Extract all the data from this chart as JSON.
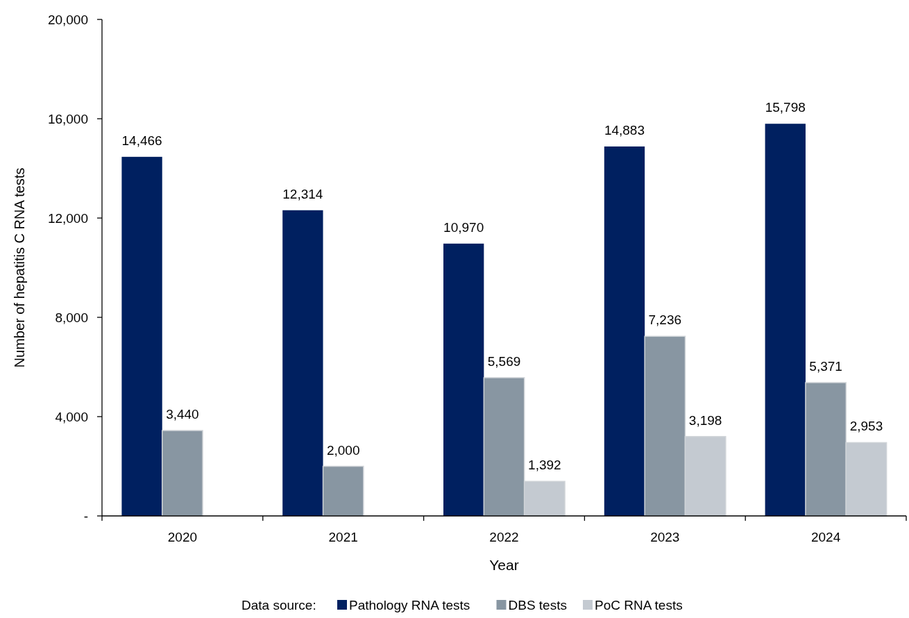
{
  "chart_data": {
    "type": "bar",
    "xlabel": "Year",
    "ylabel": "Number of hepatitis C RNA tests",
    "legend_title": "Data source:",
    "categories": [
      "2020",
      "2021",
      "2022",
      "2023",
      "2024"
    ],
    "series": [
      {
        "name": "Pathology RNA tests",
        "color": "#002060",
        "values": [
          14466,
          12314,
          10970,
          14883,
          15798
        ],
        "value_labels": [
          "14,466",
          "12,314",
          "10,970",
          "14,883",
          "15,798"
        ]
      },
      {
        "name": "DBS tests",
        "color": "#8896a2",
        "values": [
          3440,
          2000,
          5569,
          7236,
          5371
        ],
        "value_labels": [
          "3,440",
          "2,000",
          "5,569",
          "7,236",
          "5,371"
        ]
      },
      {
        "name": "PoC RNA tests",
        "color": "#c4cad1",
        "values": [
          null,
          null,
          1392,
          3198,
          2953
        ],
        "value_labels": [
          null,
          null,
          "1,392",
          "3,198",
          "2,953"
        ]
      }
    ],
    "ylim": [
      0,
      20000
    ],
    "yticks": [
      {
        "value": 0,
        "label": "-"
      },
      {
        "value": 4000,
        "label": "4,000"
      },
      {
        "value": 8000,
        "label": "8,000"
      },
      {
        "value": 12000,
        "label": "12,000"
      },
      {
        "value": 16000,
        "label": "16,000"
      },
      {
        "value": 20000,
        "label": "20,000"
      }
    ],
    "grid": false,
    "legend": "bottom"
  }
}
